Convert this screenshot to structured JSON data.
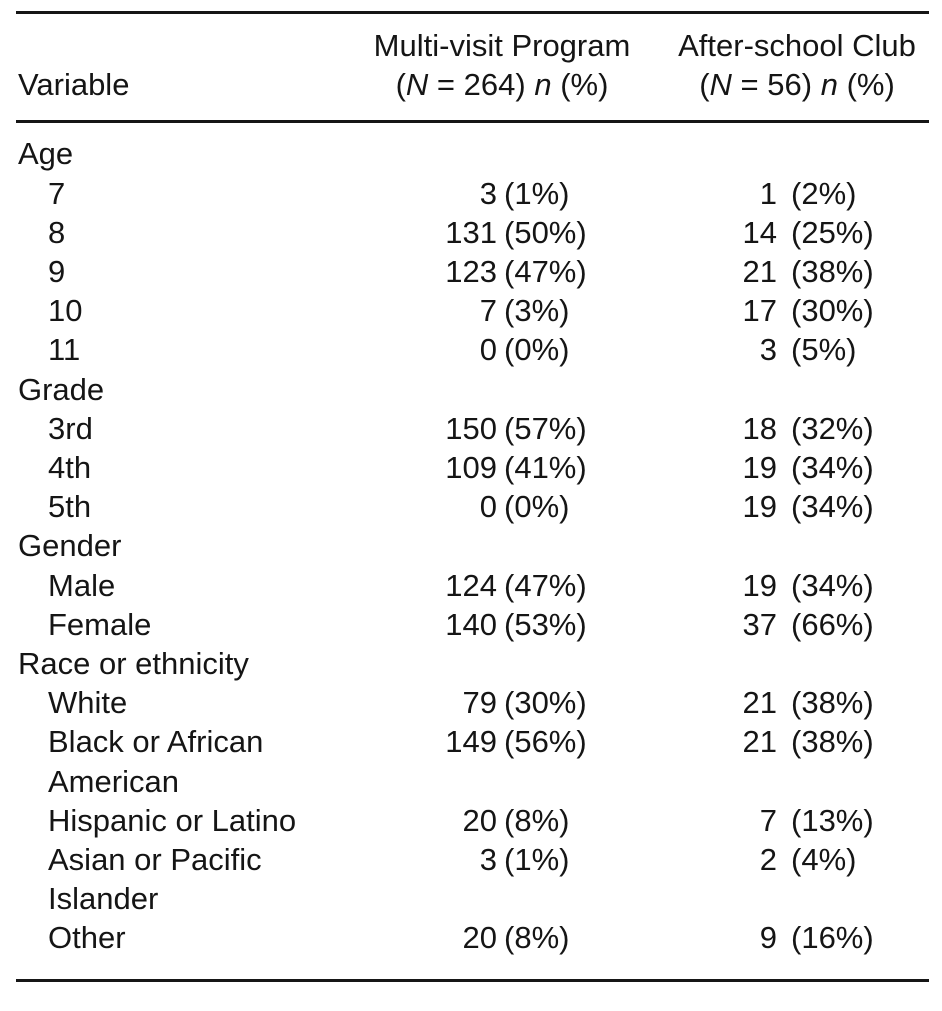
{
  "colors": {
    "background": "#ffffff",
    "text": "#151515",
    "rule": "#161616"
  },
  "table": {
    "header": {
      "variable_label": "Variable",
      "col2": {
        "line1": "Multi-visit Program",
        "open": "(",
        "N_label": "N",
        "eq": " = ",
        "N_value": "264",
        "close": ") ",
        "n_label": "n",
        "pct_label": " (%)"
      },
      "col3": {
        "line1": "After-school Club",
        "open": "(",
        "N_label": "N",
        "eq": " = ",
        "N_value": "56",
        "close": ") ",
        "n_label": "n",
        "pct_label": " (%)"
      }
    },
    "rows": [
      {
        "type": "group",
        "label": "Age"
      },
      {
        "type": "item",
        "label": "7",
        "mvp_n": "3",
        "mvp_p": "(1%)",
        "asc_n": "1",
        "asc_p": "(2%)"
      },
      {
        "type": "item",
        "label": "8",
        "mvp_n": "131",
        "mvp_p": "(50%)",
        "asc_n": "14",
        "asc_p": "(25%)"
      },
      {
        "type": "item",
        "label": "9",
        "mvp_n": "123",
        "mvp_p": "(47%)",
        "asc_n": "21",
        "asc_p": "(38%)"
      },
      {
        "type": "item",
        "label": "10",
        "mvp_n": "7",
        "mvp_p": "(3%)",
        "asc_n": "17",
        "asc_p": "(30%)"
      },
      {
        "type": "item",
        "label": "11",
        "mvp_n": "0",
        "mvp_p": "(0%)",
        "asc_n": "3",
        "asc_p": "(5%)"
      },
      {
        "type": "group",
        "label": "Grade"
      },
      {
        "type": "item",
        "label": "3rd",
        "mvp_n": "150",
        "mvp_p": "(57%)",
        "asc_n": "18",
        "asc_p": "(32%)"
      },
      {
        "type": "item",
        "label": "4th",
        "mvp_n": "109",
        "mvp_p": "(41%)",
        "asc_n": "19",
        "asc_p": "(34%)"
      },
      {
        "type": "item",
        "label": "5th",
        "mvp_n": "0",
        "mvp_p": "(0%)",
        "asc_n": "19",
        "asc_p": "(34%)"
      },
      {
        "type": "group",
        "label": "Gender"
      },
      {
        "type": "item",
        "label": "Male",
        "mvp_n": "124",
        "mvp_p": "(47%)",
        "asc_n": "19",
        "asc_p": "(34%)"
      },
      {
        "type": "item",
        "label": "Female",
        "mvp_n": "140",
        "mvp_p": "(53%)",
        "asc_n": "37",
        "asc_p": "(66%)"
      },
      {
        "type": "group",
        "label": "Race or ethnicity"
      },
      {
        "type": "item",
        "label": "White",
        "mvp_n": "79",
        "mvp_p": "(30%)",
        "asc_n": "21",
        "asc_p": "(38%)"
      },
      {
        "type": "item",
        "label": "Black or African",
        "mvp_n": "149",
        "mvp_p": "(56%)",
        "asc_n": "21",
        "asc_p": "(38%)"
      },
      {
        "type": "cont",
        "label": "American"
      },
      {
        "type": "item",
        "label": "Hispanic or Latino",
        "mvp_n": "20",
        "mvp_p": "(8%)",
        "asc_n": "7",
        "asc_p": "(13%)"
      },
      {
        "type": "item",
        "label": "Asian or Pacific",
        "mvp_n": "3",
        "mvp_p": "(1%)",
        "asc_n": "2",
        "asc_p": "(4%)"
      },
      {
        "type": "cont",
        "label": "Islander"
      },
      {
        "type": "item",
        "label": "Other",
        "mvp_n": "20",
        "mvp_p": "(8%)",
        "asc_n": "9",
        "asc_p": "(16%)"
      }
    ]
  },
  "chart_data": {
    "type": "table",
    "columns": [
      "Variable",
      "Multi-visit Program (N = 264) n (%)",
      "After-school Club (N = 56) n (%)"
    ],
    "sections": [
      {
        "group": "Age",
        "items": [
          {
            "label": "7",
            "mvp": [
              3,
              "1%"
            ],
            "asc": [
              1,
              "2%"
            ]
          },
          {
            "label": "8",
            "mvp": [
              131,
              "50%"
            ],
            "asc": [
              14,
              "25%"
            ]
          },
          {
            "label": "9",
            "mvp": [
              123,
              "47%"
            ],
            "asc": [
              21,
              "38%"
            ]
          },
          {
            "label": "10",
            "mvp": [
              7,
              "3%"
            ],
            "asc": [
              17,
              "30%"
            ]
          },
          {
            "label": "11",
            "mvp": [
              0,
              "0%"
            ],
            "asc": [
              3,
              "5%"
            ]
          }
        ]
      },
      {
        "group": "Grade",
        "items": [
          {
            "label": "3rd",
            "mvp": [
              150,
              "57%"
            ],
            "asc": [
              18,
              "32%"
            ]
          },
          {
            "label": "4th",
            "mvp": [
              109,
              "41%"
            ],
            "asc": [
              19,
              "34%"
            ]
          },
          {
            "label": "5th",
            "mvp": [
              0,
              "0%"
            ],
            "asc": [
              19,
              "34%"
            ]
          }
        ]
      },
      {
        "group": "Gender",
        "items": [
          {
            "label": "Male",
            "mvp": [
              124,
              "47%"
            ],
            "asc": [
              19,
              "34%"
            ]
          },
          {
            "label": "Female",
            "mvp": [
              140,
              "53%"
            ],
            "asc": [
              37,
              "66%"
            ]
          }
        ]
      },
      {
        "group": "Race or ethnicity",
        "items": [
          {
            "label": "White",
            "mvp": [
              79,
              "30%"
            ],
            "asc": [
              21,
              "38%"
            ]
          },
          {
            "label": "Black or African American",
            "mvp": [
              149,
              "56%"
            ],
            "asc": [
              21,
              "38%"
            ]
          },
          {
            "label": "Hispanic or Latino",
            "mvp": [
              20,
              "8%"
            ],
            "asc": [
              7,
              "13%"
            ]
          },
          {
            "label": "Asian or Pacific Islander",
            "mvp": [
              3,
              "1%"
            ],
            "asc": [
              2,
              "4%"
            ]
          },
          {
            "label": "Other",
            "mvp": [
              20,
              "8%"
            ],
            "asc": [
              9,
              "16%"
            ]
          }
        ]
      }
    ]
  }
}
